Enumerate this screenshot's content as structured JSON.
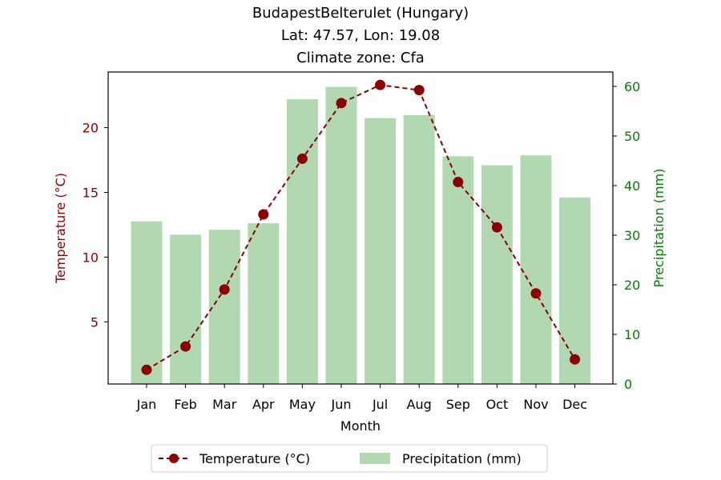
{
  "chart_data": {
    "type": "bar",
    "title": [
      "BudapestBelterulet (Hungary)",
      "Lat: 47.57, Lon: 19.08",
      "Climate zone: Cfa"
    ],
    "xlabel": "Month",
    "ylabel_left": "Temperature (°C)",
    "ylabel_right": "Precipitation (mm)",
    "categories": [
      "Jan",
      "Feb",
      "Mar",
      "Apr",
      "May",
      "Jun",
      "Jul",
      "Aug",
      "Sep",
      "Oct",
      "Nov",
      "Dec"
    ],
    "y_left_ticks": [
      5,
      10,
      15,
      20
    ],
    "y_left_range": [
      0.2,
      24.3
    ],
    "y_right_ticks": [
      0,
      10,
      20,
      30,
      40,
      50,
      60
    ],
    "y_right_range": [
      0,
      62.9
    ],
    "series": [
      {
        "name": "Temperature (°C)",
        "kind": "line",
        "axis": "left",
        "color": "#8b0000",
        "values": [
          1.3,
          3.1,
          7.5,
          13.3,
          17.6,
          21.9,
          23.3,
          22.9,
          15.8,
          12.3,
          7.2,
          2.1
        ]
      },
      {
        "name": "Precipitation (mm)",
        "kind": "bar",
        "axis": "right",
        "color": "#b2d8b2",
        "values": [
          32.8,
          30.1,
          31.1,
          32.4,
          57.4,
          59.9,
          53.6,
          54.2,
          45.9,
          44.1,
          46.1,
          37.6
        ]
      }
    ],
    "legend": {
      "placement": "bottom-center",
      "entries": [
        "Temperature (°C)",
        "Precipitation (mm)"
      ]
    },
    "grid": false,
    "left_axis_color": "#8b0000",
    "right_axis_color": "#008000"
  }
}
